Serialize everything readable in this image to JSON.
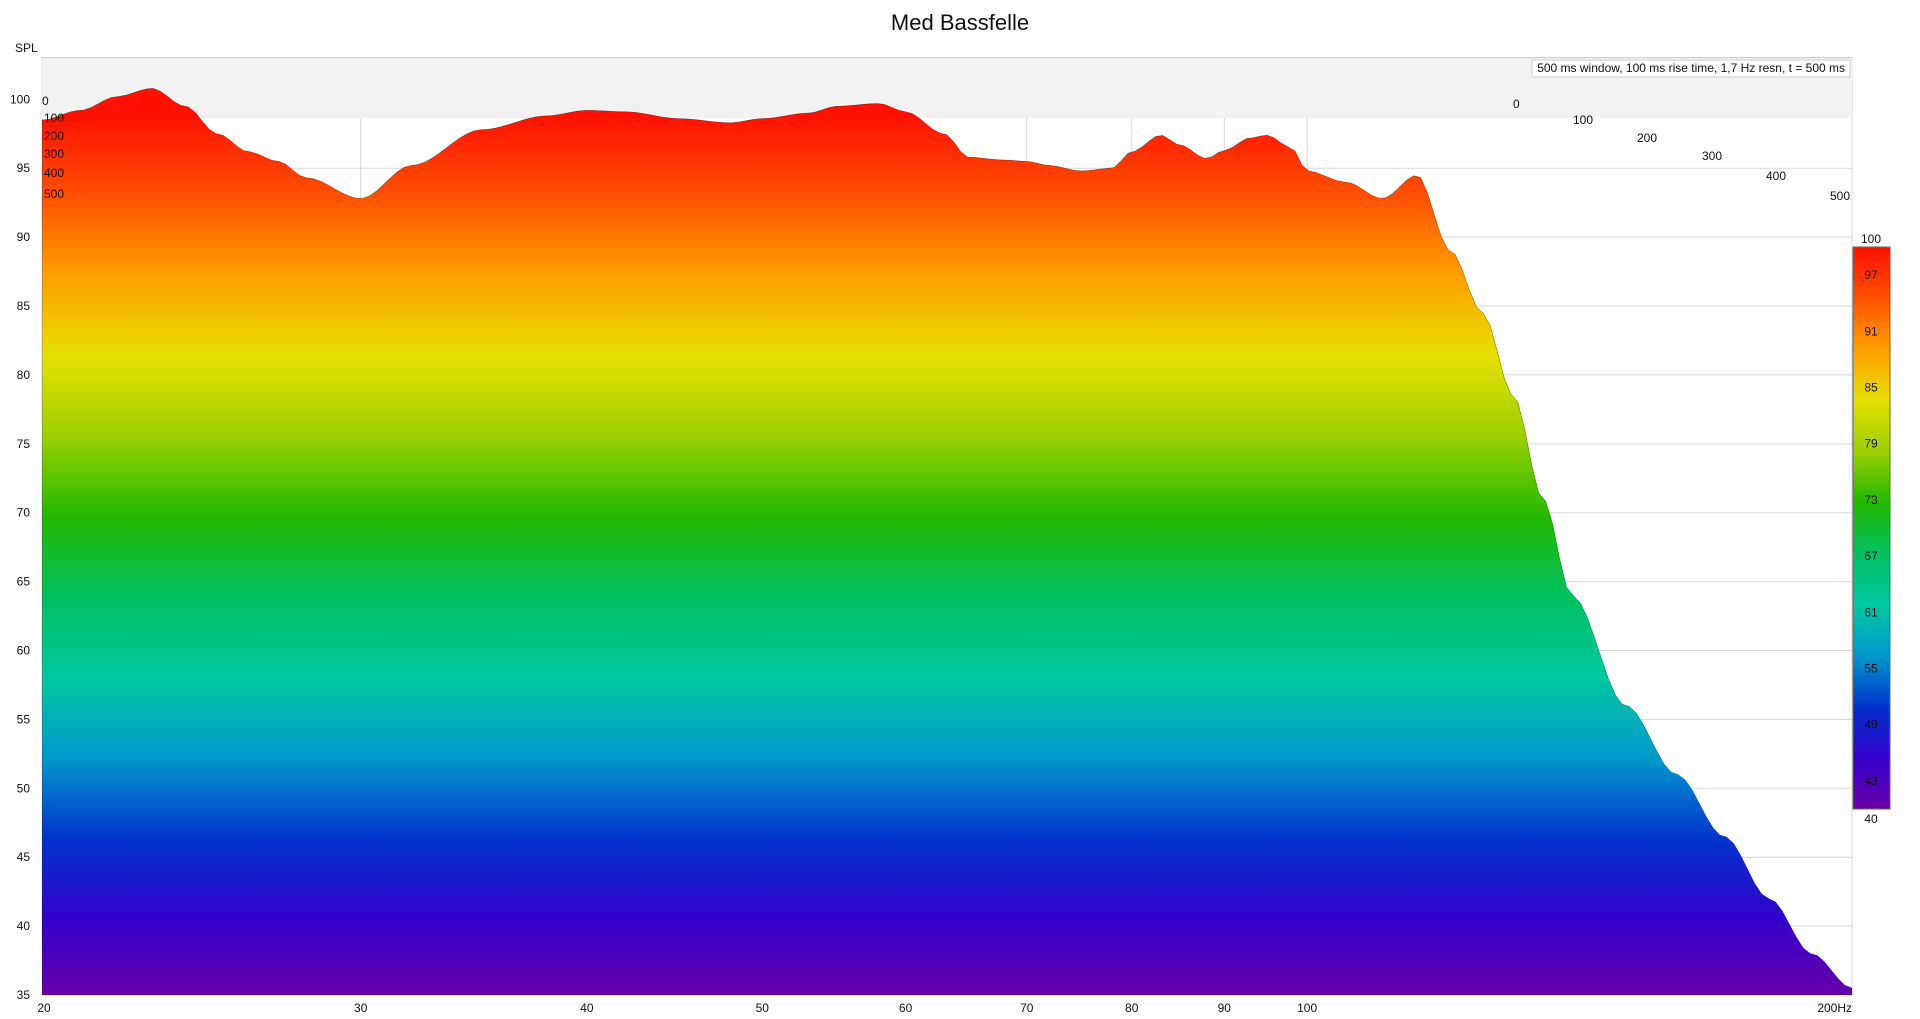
{
  "chart_data": {
    "type": "waterfall",
    "title": "Med Bassfelle",
    "ylabel": "SPL",
    "xunit": "Hz",
    "xscale": "log",
    "ylim": [
      35,
      103
    ],
    "xlim": [
      20,
      200
    ],
    "y_ticks": [
      100,
      95,
      90,
      85,
      80,
      75,
      70,
      65,
      60,
      55,
      50,
      45,
      40,
      35
    ],
    "x_ticks": [
      20,
      30,
      40,
      50,
      60,
      70,
      80,
      90,
      100,
      200
    ],
    "x_tick_labels": [
      "20",
      "30",
      "40",
      "50",
      "60",
      "70",
      "80",
      "90",
      "100",
      "200Hz"
    ],
    "annotation": "500 ms window, 100 ms rise time,  1,7 Hz resn, t = 500 ms",
    "time_axis_left_labels": [
      "0",
      "100",
      "200",
      "300",
      "400",
      "500"
    ],
    "time_axis_right_labels": [
      "0",
      "100",
      "200",
      "300",
      "400",
      "500"
    ],
    "time_unit": "ms",
    "time_range_ms": [
      0,
      500
    ],
    "colorbar": {
      "range": [
        40,
        100
      ],
      "labels": [
        "100",
        "97",
        "91",
        "85",
        "79",
        "73",
        "67",
        "61",
        "55",
        "49",
        "43",
        "40"
      ],
      "colors": [
        "#6a00a8",
        "#3300cc",
        "#0033cc",
        "#0099cc",
        "#00c8a0",
        "#00c060",
        "#22b800",
        "#9ad000",
        "#e6e000",
        "#ffa000",
        "#ff5000",
        "#ff1000"
      ]
    },
    "series": [
      {
        "x": [
          20,
          21,
          22,
          23,
          24,
          25,
          26,
          27,
          28,
          30,
          32,
          35,
          38,
          40,
          42,
          45,
          48,
          50,
          53,
          55,
          58,
          60,
          63,
          65,
          68,
          70,
          72,
          75,
          78,
          80,
          83,
          85,
          88,
          90,
          93,
          95,
          98,
          100,
          105,
          110,
          115,
          120,
          125,
          130,
          135,
          140,
          150,
          160,
          170,
          180,
          190,
          200
        ],
        "y": [
          98.5,
          99.2,
          100.2,
          100.8,
          99.5,
          97.5,
          96.2,
          95.5,
          94.3,
          92.8,
          95.2,
          97.8,
          98.8,
          99.2,
          99.1,
          98.6,
          98.3,
          98.6,
          99.0,
          99.5,
          99.7,
          99.1,
          97.5,
          95.8,
          95.6,
          95.5,
          95.2,
          94.8,
          95.0,
          96.2,
          97.4,
          96.7,
          95.7,
          96.3,
          97.2,
          97.4,
          96.5,
          94.8,
          94.0,
          92.8,
          94.5,
          89.0,
          84.5,
          78.5,
          71.0,
          64.0,
          56.0,
          51.0,
          46.5,
          42.0,
          38.0,
          35.5
        ]
      }
    ]
  }
}
